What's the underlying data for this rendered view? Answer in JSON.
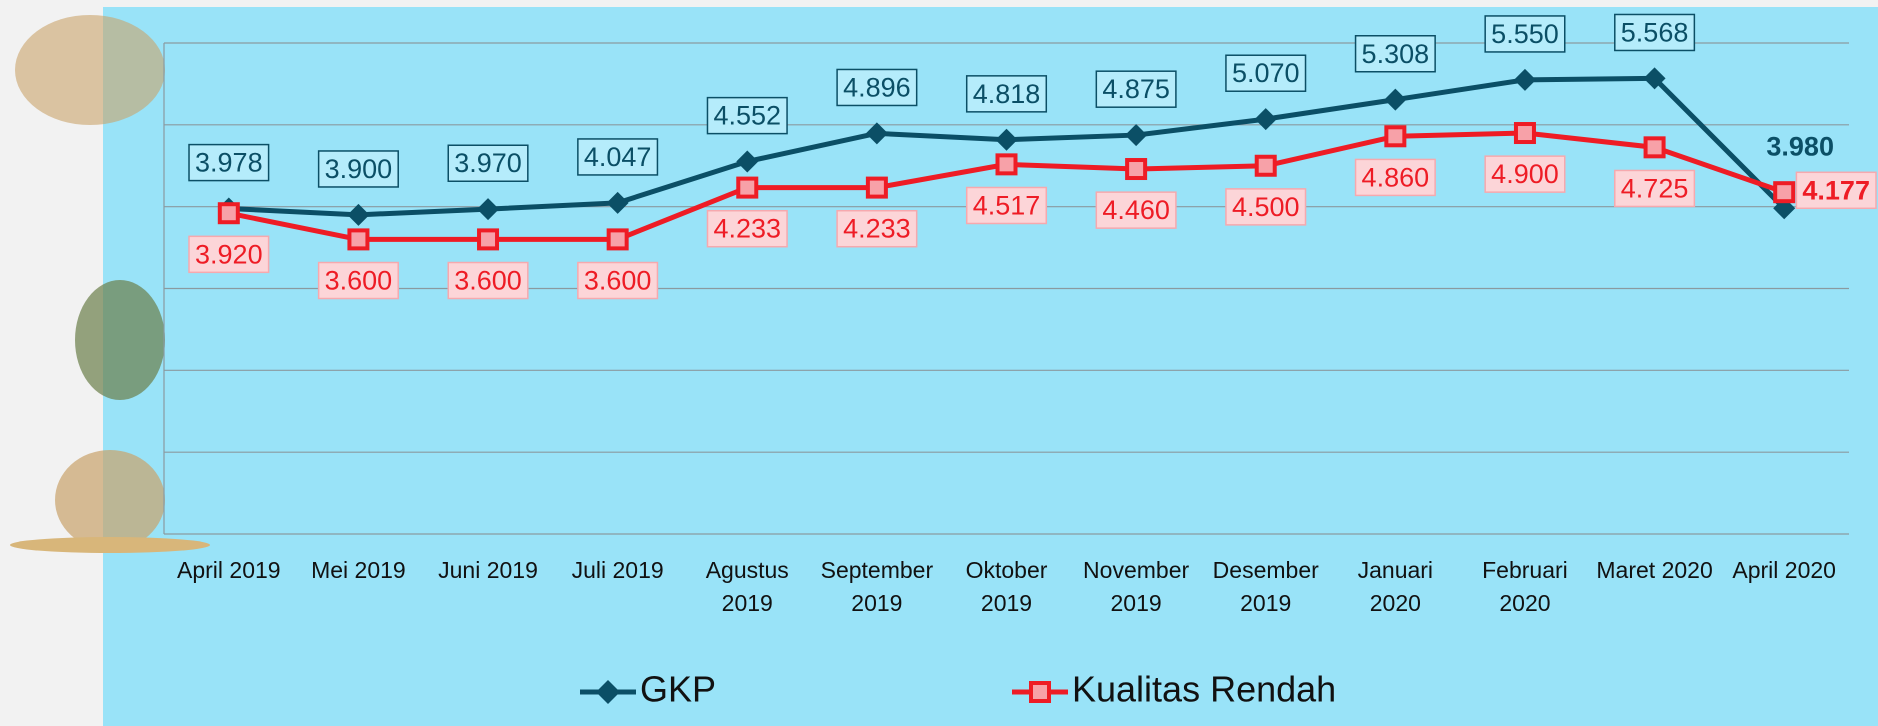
{
  "chart_data": {
    "type": "line",
    "categories": [
      "April 2019",
      "Mei 2019",
      "Juni 2019",
      "Juli 2019",
      "Agustus 2019",
      "September 2019",
      "Oktober 2019",
      "November 2019",
      "Desember 2019",
      "Januari 2020",
      "Februari 2020",
      "Maret 2020",
      "April 2020"
    ],
    "series": [
      {
        "name": "GKP",
        "color": "#0b4f66",
        "values": [
          3978,
          3900,
          3970,
          4047,
          4552,
          4896,
          4818,
          4875,
          5070,
          5308,
          5550,
          5568,
          3980
        ],
        "value_labels": [
          "3.978",
          "3.900",
          "3.970",
          "4.047",
          "4.552",
          "4.896",
          "4.818",
          "4.875",
          "5.070",
          "5.308",
          "5.550",
          "5.568",
          "3.980"
        ]
      },
      {
        "name": "Kualitas Rendah",
        "color": "#ee1c25",
        "values": [
          3920,
          3600,
          3600,
          3600,
          4233,
          4233,
          4517,
          4460,
          4500,
          4860,
          4900,
          4725,
          4177
        ],
        "value_labels": [
          "3.920",
          "3.600",
          "3.600",
          "3.600",
          "4.233",
          "4.233",
          "4.517",
          "4.460",
          "4.500",
          "4.860",
          "4.900",
          "4.725",
          "4.177"
        ]
      }
    ],
    "ylim": [
      0,
      6000
    ],
    "yticks": [
      0,
      1000,
      2000,
      3000,
      4000,
      5000,
      6000
    ],
    "grid": true,
    "legend": "bottom"
  }
}
